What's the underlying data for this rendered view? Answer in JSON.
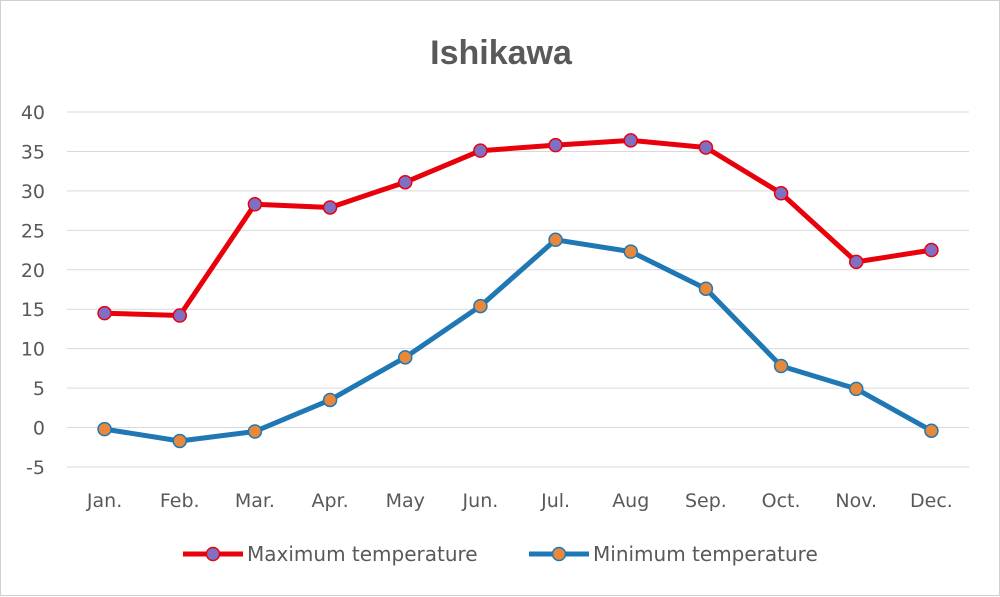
{
  "chart_data": {
    "type": "line",
    "title": "Ishikawa",
    "xlabel": "",
    "ylabel": "",
    "categories": [
      "Jan.",
      "Feb.",
      "Mar.",
      "Apr.",
      "May",
      "Jun.",
      "Jul.",
      "Aug",
      "Sep.",
      "Oct.",
      "Nov.",
      "Dec."
    ],
    "ylim": [
      -5,
      40
    ],
    "yticks": [
      -5,
      0,
      5,
      10,
      15,
      20,
      25,
      30,
      35,
      40
    ],
    "grid": true,
    "legend_position": "bottom",
    "series": [
      {
        "name": "Maximum temperature",
        "values": [
          14.5,
          14.2,
          28.3,
          27.9,
          31.1,
          35.1,
          35.8,
          36.4,
          35.5,
          29.7,
          21.0,
          22.5
        ],
        "line_color": "#e8000b",
        "marker_color": "#7f6fc5"
      },
      {
        "name": "Minimum temperature",
        "values": [
          -0.2,
          -1.7,
          -0.5,
          3.5,
          8.9,
          15.4,
          23.8,
          22.3,
          17.6,
          7.8,
          4.9,
          -0.4
        ],
        "line_color": "#1f77b4",
        "marker_color": "#e8883a"
      }
    ]
  }
}
